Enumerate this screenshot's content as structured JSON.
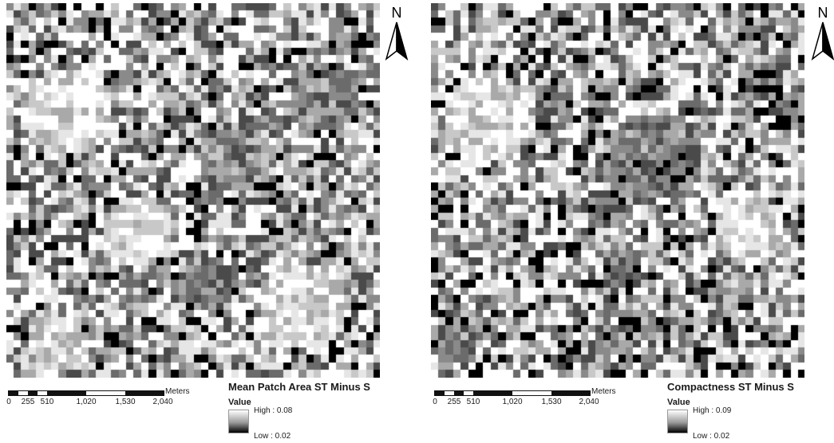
{
  "maps": [
    {
      "id": "left",
      "title": "Mean Patch Area ST Minus S",
      "legend": {
        "label": "Value",
        "high": "High : 0.08",
        "low": "Low : 0.02"
      },
      "north_label": "N",
      "scalebar": {
        "ticks": [
          "0",
          "255",
          "510",
          "1,020",
          "1,530",
          "2,040"
        ],
        "unit": "Meters"
      }
    },
    {
      "id": "right",
      "title": "Compactness ST Minus S",
      "legend": {
        "label": "Value",
        "high": "High : 0.09",
        "low": "Low : 0.02"
      },
      "north_label": "N",
      "scalebar": {
        "ticks": [
          "0",
          "255",
          "510",
          "1,020",
          "1,530",
          "2,040"
        ],
        "unit": "Meters"
      }
    }
  ],
  "colors": {
    "high": "#ffffff",
    "low": "#000000",
    "frame": "#000000"
  }
}
